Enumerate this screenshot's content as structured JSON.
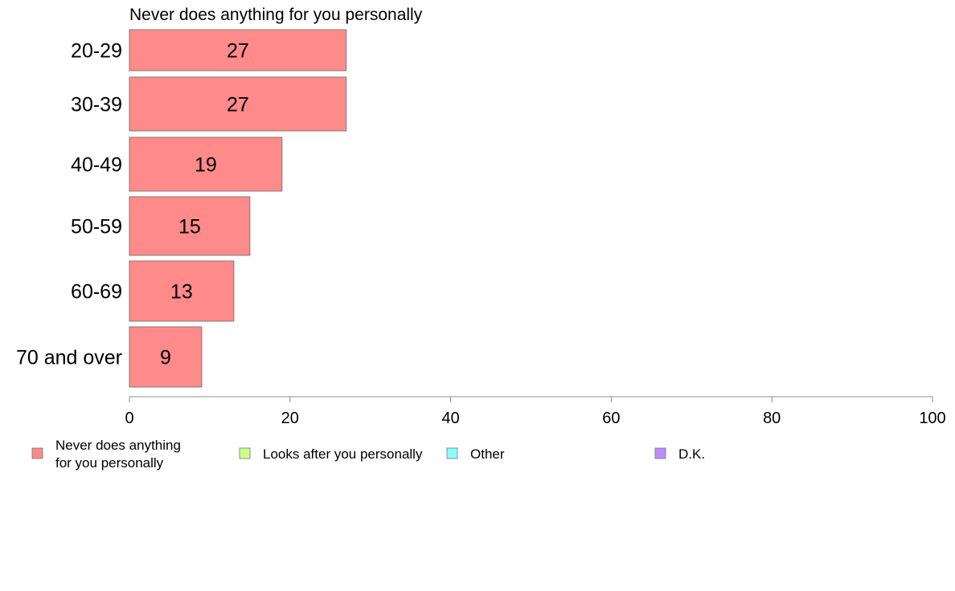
{
  "chart_data": {
    "type": "bar",
    "orientation": "horizontal",
    "title": "Never does anything for you personally",
    "xlabel": "",
    "ylabel": "",
    "categories": [
      "20-29",
      "30-39",
      "40-49",
      "50-59",
      "60-69",
      "70 and over"
    ],
    "series": [
      {
        "name": "Never does anything for you personally",
        "values": [
          27,
          27,
          19,
          15,
          13,
          9
        ],
        "color": "#FF8A8A"
      }
    ],
    "data_labels": [
      "27",
      "27",
      "19",
      "15",
      "13",
      "9"
    ],
    "xlim": [
      0,
      100
    ],
    "x_ticks": [
      0,
      20,
      40,
      60,
      80,
      100
    ],
    "x_tick_labels": [
      "0",
      "20",
      "40",
      "60",
      "80",
      "100"
    ],
    "grid": false,
    "legend_position": "bottom",
    "legend": [
      {
        "lines": [
          "Never does anything",
          "for you personally"
        ],
        "color": "#FF8A8A"
      },
      {
        "lines": [
          "Looks after you personally"
        ],
        "color": "#CCFF8A"
      },
      {
        "lines": [
          "Other"
        ],
        "color": "#8AFFFF"
      },
      {
        "lines": [
          "D.K."
        ],
        "color": "#BF8AFF"
      }
    ]
  }
}
